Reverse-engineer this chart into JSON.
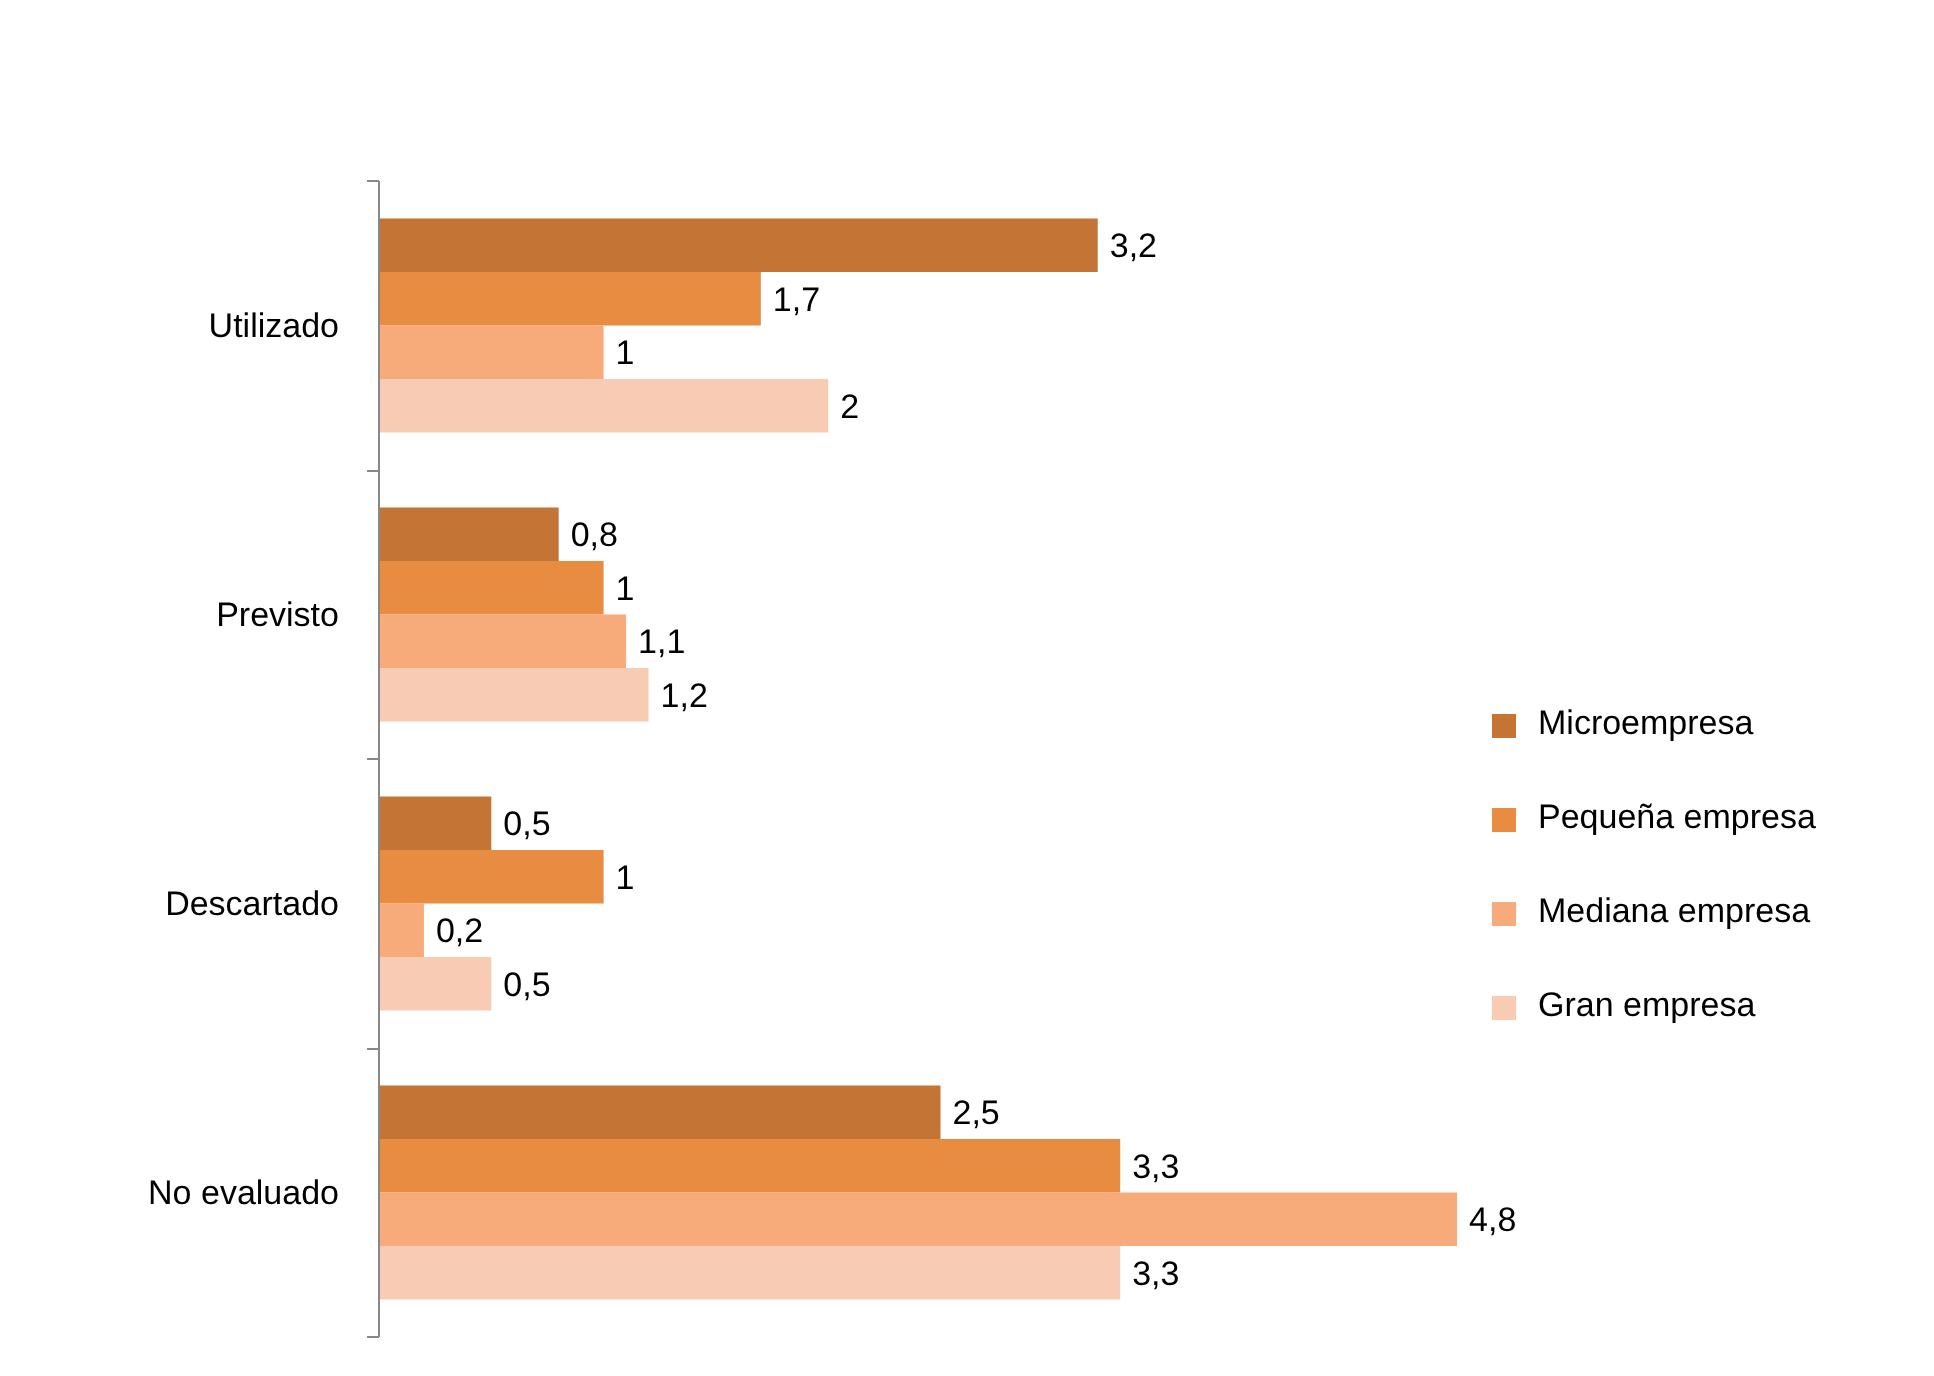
{
  "chart_data": {
    "type": "bar",
    "orientation": "horizontal",
    "categories": [
      "Utilizado",
      "Previsto",
      "Descartado",
      "No evaluado"
    ],
    "series": [
      {
        "name": "Microempresa",
        "color": "#c47535",
        "values": [
          3.2,
          0.8,
          0.5,
          2.5
        ],
        "value_labels": [
          "3,2",
          "0,8",
          "0,5",
          "2,5"
        ]
      },
      {
        "name": "Pequeña empresa",
        "color": "#e88c42",
        "values": [
          1.7,
          1,
          1,
          3.3
        ],
        "value_labels": [
          "1,7",
          "1",
          "1",
          "3,3"
        ]
      },
      {
        "name": "Mediana empresa",
        "color": "#f7aa7a",
        "values": [
          1,
          1.1,
          0.2,
          4.8
        ],
        "value_labels": [
          "1",
          "1,1",
          "0,2",
          "4,8"
        ]
      },
      {
        "name": "Gran empresa",
        "color": "#f8cbb4",
        "values": [
          2,
          1.2,
          0.5,
          3.3
        ],
        "value_labels": [
          "2",
          "1,2",
          "0,5",
          "3,3"
        ]
      }
    ],
    "legend": "right",
    "tick_labels": "y"
  }
}
